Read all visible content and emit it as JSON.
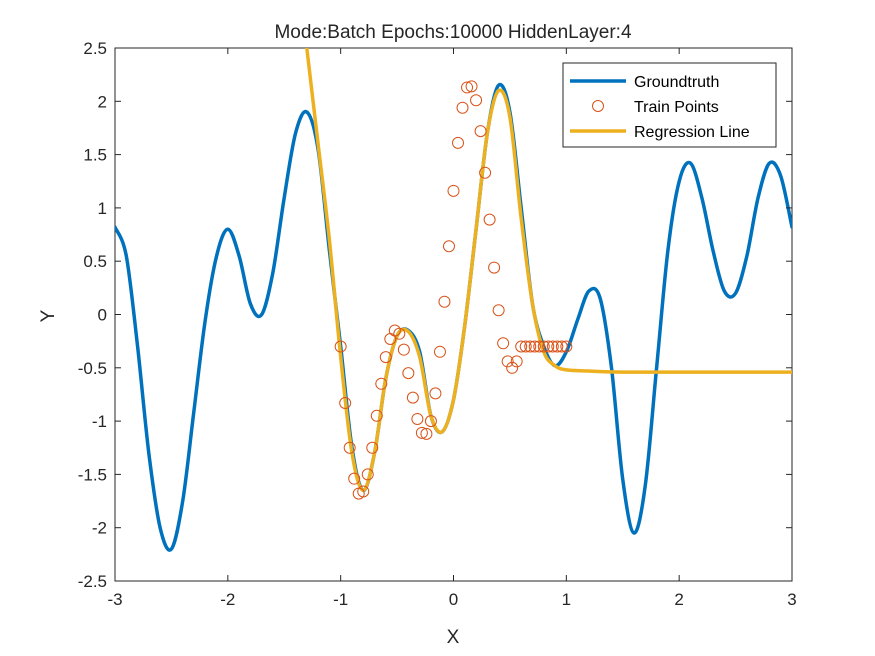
{
  "chart_data": {
    "type": "line",
    "title": "Mode:Batch Epochs:10000 HiddenLayer:4",
    "xlabel": "X",
    "ylabel": "Y",
    "xlim": [
      -3,
      3
    ],
    "ylim": [
      -2.5,
      2.5
    ],
    "x_ticks": [
      "-3",
      "-2",
      "-1",
      "0",
      "1",
      "2",
      "3"
    ],
    "y_ticks": [
      "2.5",
      "2",
      "1.5",
      "1",
      "0.5",
      "0",
      "-0.5",
      "-1",
      "-1.5",
      "-2",
      "-2.5"
    ],
    "grid": false,
    "legend_position": "top-right",
    "colors": {
      "groundtruth": "#0072BD",
      "train": "#D95319",
      "regression": "#EDB120"
    },
    "series": [
      {
        "name": "Groundtruth",
        "style": "line",
        "x": [
          -3.0,
          -2.9,
          -2.8,
          -2.7,
          -2.6,
          -2.5,
          -2.4,
          -2.3,
          -2.2,
          -2.1,
          -2.0,
          -1.9,
          -1.8,
          -1.7,
          -1.6,
          -1.5,
          -1.4,
          -1.3,
          -1.2,
          -1.1,
          -1.0,
          -0.9,
          -0.8,
          -0.7,
          -0.6,
          -0.5,
          -0.4,
          -0.3,
          -0.2,
          -0.1,
          0.0,
          0.1,
          0.2,
          0.3,
          0.4,
          0.5,
          0.6,
          0.7,
          0.8,
          0.9,
          1.0,
          1.1,
          1.2,
          1.3,
          1.4,
          1.5,
          1.6,
          1.7,
          1.8,
          1.9,
          2.0,
          2.1,
          2.2,
          2.3,
          2.4,
          2.5,
          2.6,
          2.7,
          2.8,
          2.9,
          3.0
        ],
        "y": [
          0.82,
          0.55,
          -0.3,
          -1.3,
          -2.0,
          -2.2,
          -1.75,
          -0.9,
          -0.05,
          0.55,
          0.8,
          0.55,
          0.1,
          0.0,
          0.4,
          1.1,
          1.7,
          1.9,
          1.55,
          0.6,
          -0.3,
          -1.25,
          -1.65,
          -1.3,
          -0.6,
          -0.2,
          -0.15,
          -0.35,
          -0.95,
          -1.1,
          -0.8,
          -0.1,
          0.8,
          1.7,
          2.15,
          1.9,
          1.0,
          0.1,
          -0.3,
          -0.48,
          -0.35,
          -0.05,
          0.22,
          0.15,
          -0.5,
          -1.55,
          -2.05,
          -1.6,
          -0.5,
          0.6,
          1.25,
          1.42,
          1.1,
          0.6,
          0.22,
          0.2,
          0.55,
          1.1,
          1.42,
          1.3,
          0.82
        ]
      },
      {
        "name": "Train Points",
        "style": "markers",
        "x": [
          -1.0,
          -0.96,
          -0.92,
          -0.88,
          -0.84,
          -0.8,
          -0.76,
          -0.72,
          -0.68,
          -0.64,
          -0.6,
          -0.56,
          -0.52,
          -0.48,
          -0.44,
          -0.4,
          -0.36,
          -0.32,
          -0.28,
          -0.24,
          -0.2,
          -0.16,
          -0.12,
          -0.08,
          -0.04,
          0.0,
          0.04,
          0.08,
          0.12,
          0.16,
          0.2,
          0.24,
          0.28,
          0.32,
          0.36,
          0.4,
          0.44,
          0.48,
          0.52,
          0.56,
          0.6,
          0.64,
          0.68,
          0.72,
          0.76,
          0.8,
          0.84,
          0.88,
          0.92,
          0.96,
          1.0
        ],
        "y": [
          -0.3,
          -0.83,
          -1.25,
          -1.54,
          -1.68,
          -1.66,
          -1.5,
          -1.25,
          -0.95,
          -0.65,
          -0.4,
          -0.23,
          -0.15,
          -0.18,
          -0.33,
          -0.55,
          -0.78,
          -0.98,
          -1.11,
          -1.12,
          -1.0,
          -0.74,
          -0.35,
          0.12,
          0.64,
          1.16,
          1.61,
          1.94,
          2.13,
          2.14,
          2.01,
          1.72,
          1.33,
          0.89,
          0.44,
          0.04,
          -0.27,
          -0.44,
          -0.5,
          -0.44,
          -0.3,
          -0.3,
          -0.3,
          -0.3,
          -0.3,
          -0.3,
          -0.3,
          -0.3,
          -0.3,
          -0.3,
          -0.3
        ]
      },
      {
        "name": "Regression Line",
        "style": "line",
        "x": [
          -1.3,
          -1.2,
          -1.1,
          -1.0,
          -0.9,
          -0.8,
          -0.7,
          -0.6,
          -0.5,
          -0.4,
          -0.3,
          -0.2,
          -0.1,
          0.0,
          0.1,
          0.2,
          0.3,
          0.4,
          0.5,
          0.6,
          0.7,
          0.8,
          0.9,
          1.0,
          1.2,
          1.5,
          2.0,
          2.5,
          3.0
        ],
        "y": [
          2.5,
          1.6,
          0.7,
          -0.4,
          -1.3,
          -1.65,
          -1.3,
          -0.6,
          -0.2,
          -0.16,
          -0.4,
          -0.95,
          -1.1,
          -0.8,
          -0.1,
          0.8,
          1.7,
          2.1,
          1.85,
          0.9,
          0.1,
          -0.35,
          -0.48,
          -0.52,
          -0.53,
          -0.54,
          -0.54,
          -0.54,
          -0.54
        ]
      }
    ]
  }
}
